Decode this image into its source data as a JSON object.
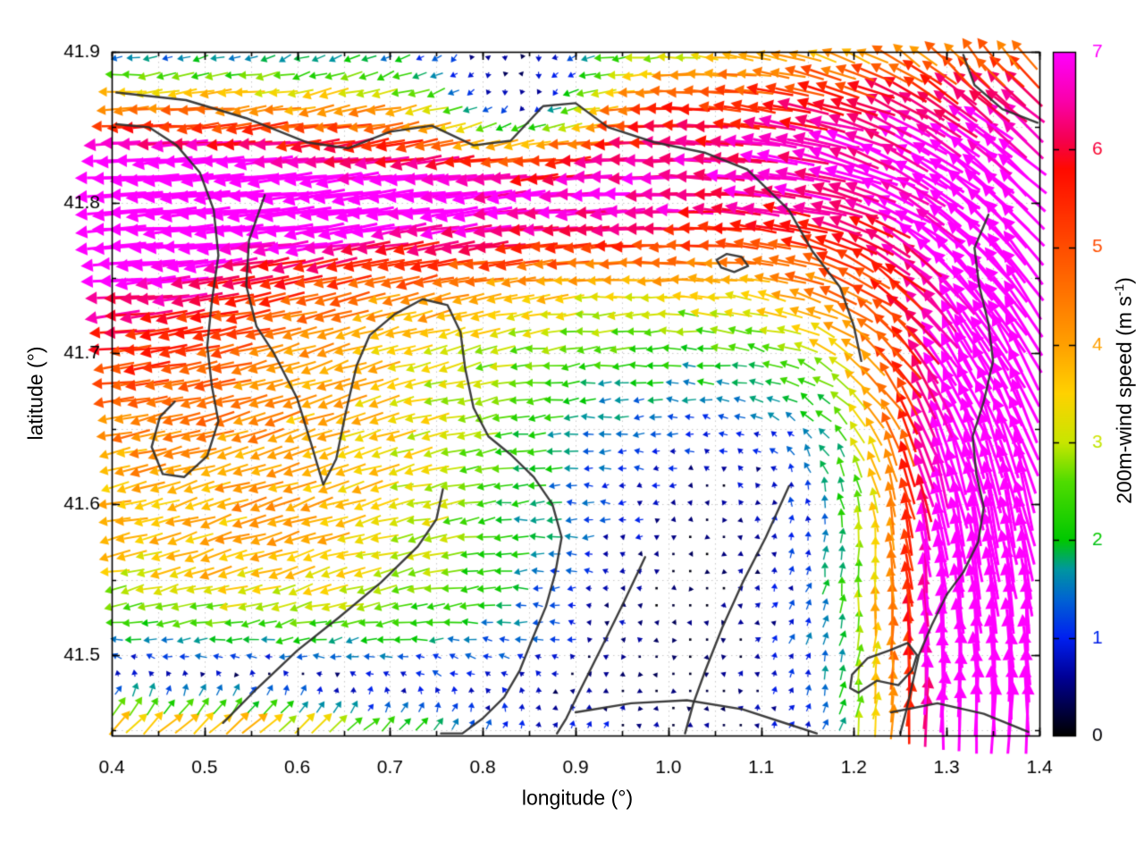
{
  "chart_data": {
    "type": "quiver",
    "title": "",
    "xlabel": "longitude (°)",
    "ylabel": "latitude (°)",
    "x_axis": {
      "range": [
        0.4,
        1.4
      ],
      "tick_values": [
        0.4,
        0.5,
        0.6,
        0.7,
        0.8,
        0.9,
        1.0,
        1.1,
        1.2,
        1.3,
        1.4
      ],
      "tick_labels": [
        "0.4",
        "0.5",
        "0.6",
        "0.7",
        "0.8",
        "0.9",
        "1.0",
        "1.1",
        "1.2",
        "1.3",
        "1.4"
      ],
      "minor_step": 0.05
    },
    "y_axis": {
      "range": [
        41.4466,
        41.9
      ],
      "tick_values": [
        41.5,
        41.6,
        41.7,
        41.8,
        41.9
      ],
      "tick_labels": [
        "41.5",
        "41.6",
        "41.7",
        "41.8",
        "41.9"
      ],
      "minor_step": 0.05
    },
    "colorbar": {
      "range": [
        0,
        7
      ],
      "tick_values": [
        0,
        1,
        2,
        3,
        4,
        5,
        6,
        7
      ],
      "tick_labels": [
        "0",
        "1",
        "2",
        "3",
        "4",
        "5",
        "6",
        "7"
      ],
      "label_pre": "200m-wind speed (m s",
      "label_sup": "-1",
      "label_post": ")"
    },
    "colormap_stops": [
      [
        0.0,
        "#000000"
      ],
      [
        0.6,
        "#000096"
      ],
      [
        1.0,
        "#0020f0"
      ],
      [
        1.4,
        "#0064d2"
      ],
      [
        1.7,
        "#0096a0"
      ],
      [
        2.0,
        "#00c800"
      ],
      [
        2.6,
        "#50dc00"
      ],
      [
        3.0,
        "#c8e600"
      ],
      [
        3.5,
        "#ffd200"
      ],
      [
        4.0,
        "#ffa000"
      ],
      [
        4.6,
        "#ff6e00"
      ],
      [
        5.2,
        "#ff3c00"
      ],
      [
        5.8,
        "#ff0a00"
      ],
      [
        6.1,
        "#f50050"
      ],
      [
        6.5,
        "#fa00aa"
      ],
      [
        7.0,
        "#ff00ff"
      ]
    ],
    "grid_nodes": {
      "lon_start": 0.4065,
      "lon_step": 0.01815,
      "cols": 55,
      "lat_start": 41.4535,
      "lat_step": 0.01135,
      "rows": 40
    },
    "arrow_style": {
      "len_scale": 9.5,
      "len_max": 80,
      "head_base": 4.5,
      "head_scale": 1.35,
      "head_max": 13.5,
      "head_width_ratio": 0.48,
      "line_base": 0.9,
      "line_scale": 0.3,
      "line_max": 3.0,
      "dot_threshold": 0.3,
      "tail_anchor": 0.4
    },
    "flow_model": {
      "summary": "Cyclonic circulation: strong westward magenta jet (7 m/s) along lat 41.78-41.84 and the west edge, calm blue core near lon 1.0 lat 41.55, northward red/magenta flow along the east edge, green moderate westward flow in the SW interior, strong NE jet in the SW bottom corner.",
      "terms": [
        {
          "u": -0.6,
          "f": []
        },
        {
          "u": -2.2,
          "f": [
            {
              "k": "sphi",
              "c": 41.64,
              "w": 0.09
            }
          ]
        },
        {
          "u": -3.6,
          "f": [
            {
              "k": "gphi",
              "c": 41.802,
              "w": 0.045
            },
            {
              "k": "slam",
              "c": 1.05,
              "w": -0.12
            }
          ]
        },
        {
          "u": -3.5,
          "f": [
            {
              "k": "glam",
              "c": 0.38,
              "w": 0.22
            },
            {
              "k": "gphi",
              "c": 41.76,
              "w": 0.11
            }
          ]
        },
        {
          "u": 2.6,
          "f": [
            {
              "k": "gphi",
              "c": 41.912,
              "w": 0.035
            }
          ]
        },
        {
          "u": 1.2,
          "f": [
            {
              "k": "glam",
              "c": 1.0,
              "w": 0.18
            },
            {
              "k": "gphi",
              "c": 41.56,
              "w": 0.16
            }
          ]
        },
        {
          "u": -2.4,
          "f": [
            {
              "k": "glam",
              "c": 0.55,
              "w": 0.35
            },
            {
              "k": "gphi",
              "c": 41.54,
              "w": 0.13
            }
          ]
        },
        {
          "u": 4.0,
          "f": [
            {
              "k": "glam",
              "c": 0.84,
              "w": 0.09
            },
            {
              "k": "gphi",
              "c": 41.868,
              "w": 0.04
            }
          ]
        },
        {
          "v": 4.5,
          "f": [
            {
              "k": "glam",
              "c": 1.32,
              "w": 0.1
            },
            {
              "k": "gphi",
              "c": 41.52,
              "w": 0.2
            }
          ]
        },
        {
          "v": 2.2,
          "f": [
            {
              "k": "glam",
              "c": 1.43,
              "w": 0.16
            }
          ]
        },
        {
          "u": 8.0,
          "v": 6.0,
          "f": [
            {
              "k": "glam",
              "c": 0.5,
              "w": 0.32
            },
            {
              "k": "gphi",
              "c": 41.39,
              "w": 0.09
            }
          ]
        },
        {
          "u": 1.2,
          "v": 0.6,
          "f": [
            {
              "k": "glam",
              "c": 1.17,
              "w": 0.12
            },
            {
              "k": "gphi",
              "c": 41.56,
              "w": 0.12
            }
          ]
        }
      ],
      "vortex": {
        "lam0": 1.0,
        "phi0": 41.54,
        "rx": 0.4,
        "ry": 0.3,
        "T0": 4.0,
        "p": 4,
        "q": 1.5,
        "damp_amp": 0.75,
        "damp_k": 2.5
      },
      "noise": {
        "amp": 0.3,
        "speed_factor": 0.12
      }
    },
    "contours": {
      "color": "#2e2e2e",
      "width": 2.4,
      "paths": [
        [
          [
            0.405,
            41.873
          ],
          [
            0.48,
            41.868
          ],
          [
            0.545,
            41.856
          ],
          [
            0.61,
            41.84
          ],
          [
            0.655,
            41.836
          ],
          [
            0.7,
            41.847
          ],
          [
            0.745,
            41.851
          ],
          [
            0.79,
            41.838
          ],
          [
            0.83,
            41.841
          ],
          [
            0.865,
            41.864
          ],
          [
            0.9,
            41.866
          ],
          [
            0.935,
            41.85
          ],
          [
            0.985,
            41.84
          ],
          [
            1.04,
            41.833
          ],
          [
            1.085,
            41.822
          ],
          [
            1.13,
            41.795
          ],
          [
            1.155,
            41.768
          ],
          [
            1.185,
            41.744
          ],
          [
            1.2,
            41.718
          ],
          [
            1.208,
            41.695
          ]
        ],
        [
          [
            0.405,
            41.852
          ],
          [
            0.44,
            41.85
          ],
          [
            0.47,
            41.838
          ],
          [
            0.495,
            41.82
          ],
          [
            0.51,
            41.795
          ],
          [
            0.515,
            41.765
          ],
          [
            0.508,
            41.735
          ],
          [
            0.503,
            41.705
          ],
          [
            0.508,
            41.678
          ],
          [
            0.515,
            41.655
          ],
          [
            0.503,
            41.632
          ],
          [
            0.478,
            41.618
          ],
          [
            0.455,
            41.62
          ],
          [
            0.443,
            41.638
          ],
          [
            0.452,
            41.658
          ],
          [
            0.468,
            41.668
          ]
        ],
        [
          [
            0.565,
            41.805
          ],
          [
            0.548,
            41.775
          ],
          [
            0.545,
            41.745
          ],
          [
            0.556,
            41.718
          ],
          [
            0.575,
            41.7
          ],
          [
            0.6,
            41.67
          ],
          [
            0.615,
            41.64
          ],
          [
            0.628,
            41.613
          ],
          [
            0.642,
            41.63
          ],
          [
            0.652,
            41.66
          ],
          [
            0.664,
            41.692
          ],
          [
            0.678,
            41.712
          ],
          [
            0.705,
            41.726
          ],
          [
            0.735,
            41.736
          ],
          [
            0.762,
            41.732
          ],
          [
            0.776,
            41.714
          ],
          [
            0.781,
            41.69
          ],
          [
            0.79,
            41.664
          ],
          [
            0.806,
            41.645
          ],
          [
            0.83,
            41.633
          ],
          [
            0.855,
            41.618
          ],
          [
            0.875,
            41.6
          ],
          [
            0.885,
            41.578
          ],
          [
            0.878,
            41.554
          ],
          [
            0.868,
            41.532
          ],
          [
            0.853,
            41.51
          ],
          [
            0.84,
            41.49
          ],
          [
            0.823,
            41.472
          ],
          [
            0.8,
            41.458
          ],
          [
            0.778,
            41.448
          ],
          [
            0.755,
            41.448
          ]
        ],
        [
          [
            1.345,
            41.792
          ],
          [
            1.33,
            41.77
          ],
          [
            1.335,
            41.745
          ],
          [
            1.345,
            41.72
          ],
          [
            1.35,
            41.695
          ],
          [
            1.34,
            41.668
          ],
          [
            1.328,
            41.645
          ],
          [
            1.332,
            41.62
          ],
          [
            1.34,
            41.598
          ],
          [
            1.334,
            41.575
          ],
          [
            1.318,
            41.555
          ],
          [
            1.3,
            41.54
          ],
          [
            1.284,
            41.52
          ],
          [
            1.27,
            41.5
          ],
          [
            1.262,
            41.478
          ],
          [
            1.256,
            41.462
          ],
          [
            1.25,
            41.448
          ]
        ],
        [
          [
            0.975,
            41.565
          ],
          [
            0.952,
            41.535
          ],
          [
            0.928,
            41.505
          ],
          [
            0.906,
            41.478
          ],
          [
            0.89,
            41.458
          ],
          [
            0.88,
            41.448
          ]
        ],
        [
          [
            1.13,
            41.612
          ],
          [
            1.105,
            41.578
          ],
          [
            1.08,
            41.548
          ],
          [
            1.058,
            41.518
          ],
          [
            1.04,
            41.49
          ],
          [
            1.027,
            41.468
          ],
          [
            1.018,
            41.448
          ]
        ],
        [
          [
            1.205,
            41.475
          ],
          [
            1.225,
            41.483
          ],
          [
            1.248,
            41.48
          ],
          [
            1.263,
            41.49
          ],
          [
            1.268,
            41.5
          ],
          [
            1.258,
            41.508
          ],
          [
            1.238,
            41.503
          ],
          [
            1.215,
            41.498
          ],
          [
            1.198,
            41.487
          ],
          [
            1.196,
            41.478
          ],
          [
            1.205,
            41.475
          ]
        ],
        [
          [
            0.9,
            41.462
          ],
          [
            0.96,
            41.468
          ],
          [
            1.02,
            41.47
          ],
          [
            1.08,
            41.464
          ],
          [
            1.13,
            41.454
          ],
          [
            1.16,
            41.448
          ]
        ],
        [
          [
            1.318,
            41.898
          ],
          [
            1.33,
            41.878
          ],
          [
            1.36,
            41.862
          ],
          [
            1.398,
            41.853
          ]
        ],
        [
          [
            1.24,
            41.462
          ],
          [
            1.29,
            41.468
          ],
          [
            1.34,
            41.461
          ],
          [
            1.388,
            41.449
          ]
        ],
        [
          [
            0.52,
            41.455
          ],
          [
            0.557,
            41.478
          ],
          [
            0.6,
            41.503
          ],
          [
            0.645,
            41.525
          ],
          [
            0.69,
            41.548
          ],
          [
            0.73,
            41.572
          ],
          [
            0.75,
            41.59
          ],
          [
            0.757,
            41.61
          ]
        ],
        [
          [
            1.052,
            41.762
          ],
          [
            1.063,
            41.766
          ],
          [
            1.079,
            41.764
          ],
          [
            1.086,
            41.758
          ],
          [
            1.071,
            41.754
          ],
          [
            1.057,
            41.757
          ],
          [
            1.052,
            41.762
          ]
        ]
      ]
    },
    "style": {
      "background": "#ffffff",
      "frame_color": "#000000",
      "grid_color": "#c9c9c9",
      "text_color": "#000000",
      "tick_font_px": 21,
      "major_tick_len": 9,
      "minor_tick_len": 5
    }
  }
}
